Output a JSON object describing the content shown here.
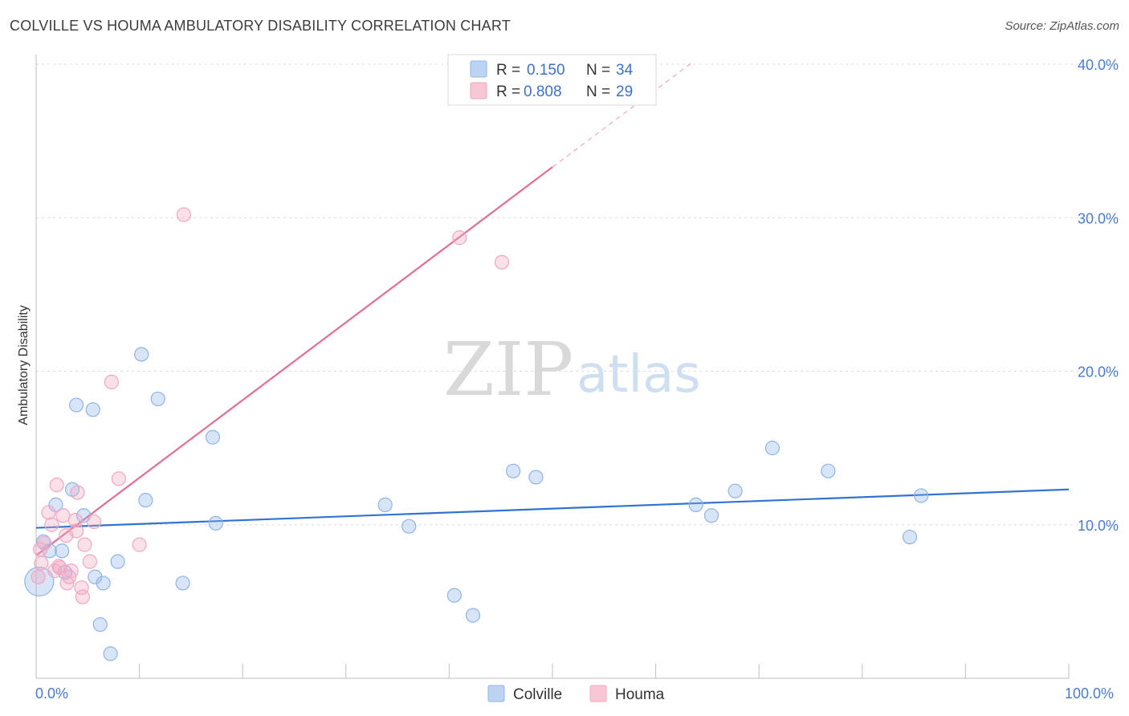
{
  "header": {
    "title": "COLVILLE VS HOUMA AMBULATORY DISABILITY CORRELATION CHART",
    "source": "Source: ZipAtlas.com"
  },
  "watermark": {
    "zip": "ZIP",
    "atlas": "atlas"
  },
  "legend": {
    "rows": [
      {
        "r_label": "R =",
        "r_value": "0.150",
        "n_label": "N =",
        "n_value": "34",
        "color": "#8fb4e8"
      },
      {
        "r_label": "R =",
        "r_value": "0.808",
        "n_label": "N =",
        "n_value": "29",
        "color": "#f2a7bf"
      }
    ]
  },
  "bottom_legend": {
    "items": [
      "Colville",
      "Houma"
    ]
  },
  "chart_data": {
    "type": "scatter",
    "title": "COLVILLE VS HOUMA AMBULATORY DISABILITY CORRELATION CHART",
    "xlabel": "",
    "ylabel": "Ambulatory Disability",
    "xlim": [
      0,
      100
    ],
    "ylim": [
      0,
      40
    ],
    "x_tick_labels": [
      "0.0%",
      "100.0%"
    ],
    "y_tick_labels": [
      "10.0%",
      "20.0%",
      "30.0%",
      "40.0%"
    ],
    "y_ticks": [
      10,
      20,
      30,
      40
    ],
    "grid": true,
    "legend_position": "top-center",
    "series": [
      {
        "name": "Colville",
        "color": "#8fb4e8",
        "line_color": "#2f74d0",
        "trend": {
          "x": [
            0,
            100
          ],
          "y": [
            9.8,
            12.3
          ]
        },
        "points": [
          [
            0.3,
            6.3
          ],
          [
            0.7,
            8.9
          ],
          [
            1.3,
            8.3
          ],
          [
            1.9,
            11.3
          ],
          [
            2.5,
            8.3
          ],
          [
            2.8,
            6.9
          ],
          [
            3.5,
            12.3
          ],
          [
            3.9,
            17.8
          ],
          [
            4.6,
            10.6
          ],
          [
            5.5,
            17.5
          ],
          [
            5.7,
            6.6
          ],
          [
            6.2,
            3.5
          ],
          [
            6.5,
            6.2
          ],
          [
            7.2,
            1.6
          ],
          [
            7.9,
            7.6
          ],
          [
            10.2,
            21.1
          ],
          [
            10.6,
            11.6
          ],
          [
            11.8,
            18.2
          ],
          [
            14.2,
            6.2
          ],
          [
            17.1,
            15.7
          ],
          [
            17.4,
            10.1
          ],
          [
            33.8,
            11.3
          ],
          [
            36.1,
            9.9
          ],
          [
            40.5,
            5.4
          ],
          [
            42.3,
            4.1
          ],
          [
            46.2,
            13.5
          ],
          [
            48.4,
            13.1
          ],
          [
            63.9,
            11.3
          ],
          [
            65.4,
            10.6
          ],
          [
            67.7,
            12.2
          ],
          [
            71.3,
            15.0
          ],
          [
            76.7,
            13.5
          ],
          [
            84.6,
            9.2
          ],
          [
            85.7,
            11.9
          ]
        ]
      },
      {
        "name": "Houma",
        "color": "#f2a7bf",
        "line_color": "#e46d94",
        "trend": {
          "x": [
            0,
            50
          ],
          "y": [
            8.0,
            33.3
          ]
        },
        "trend_extension": {
          "x": [
            50,
            63.5
          ],
          "y": [
            33.3,
            40.1
          ]
        },
        "points": [
          [
            0.2,
            6.6
          ],
          [
            0.5,
            7.5
          ],
          [
            0.8,
            8.8
          ],
          [
            1.2,
            10.8
          ],
          [
            1.5,
            10.0
          ],
          [
            1.8,
            7.0
          ],
          [
            2.0,
            12.6
          ],
          [
            2.3,
            7.2
          ],
          [
            2.6,
            10.6
          ],
          [
            2.9,
            9.3
          ],
          [
            3.0,
            6.2
          ],
          [
            3.2,
            6.6
          ],
          [
            3.4,
            7.0
          ],
          [
            3.8,
            10.3
          ],
          [
            3.9,
            9.6
          ],
          [
            4.0,
            12.1
          ],
          [
            4.4,
            5.9
          ],
          [
            4.5,
            5.3
          ],
          [
            4.7,
            8.7
          ],
          [
            5.2,
            7.6
          ],
          [
            5.6,
            10.2
          ],
          [
            7.3,
            19.3
          ],
          [
            8.0,
            13.0
          ],
          [
            10.0,
            8.7
          ],
          [
            14.3,
            30.2
          ],
          [
            41.0,
            28.7
          ],
          [
            45.1,
            27.1
          ],
          [
            0.4,
            8.4
          ],
          [
            2.2,
            7.3
          ]
        ]
      }
    ]
  }
}
